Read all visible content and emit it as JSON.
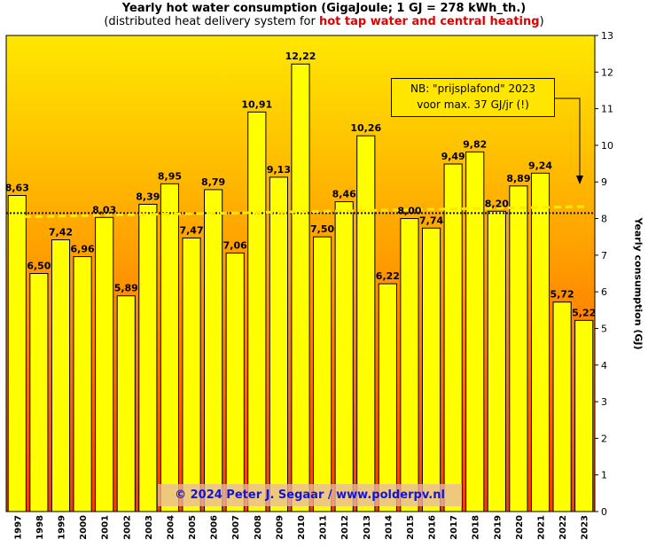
{
  "header": {
    "title": "Yearly hot water consumption  (GigaJoule;  1 GJ = 278 kWh_th.)",
    "subtitle_pre": "(distributed  heat delivery  system for ",
    "subtitle_highlight": "hot tap water and central heating",
    "subtitle_post": ")"
  },
  "note": {
    "line1": "NB:  \"prijsplafond\"  2023",
    "line2": "voor max.  37 GJ/jr  (!)"
  },
  "copyright": "© 2024  Peter  J. Segaar  /  www.polderpv.nl",
  "colors": {
    "bar_fill": "#ffff00",
    "bg_top": "#ffe800",
    "bg_mid": "#ffa000",
    "bg_bottom": "#ff3800",
    "avg_line": "#ffe800",
    "trend_line": "#111111",
    "copyright_text": "#1414d8",
    "highlight": "#e00000"
  },
  "chart_data": {
    "type": "bar",
    "title": "Yearly hot water consumption  (GigaJoule;  1 GJ = 278 kWh_th.)",
    "xlabel": "",
    "ylabel": "Yearly consumption (GJ)",
    "ylim": [
      0,
      13
    ],
    "yticks": [
      "0",
      "1",
      "2",
      "3",
      "4",
      "5",
      "6",
      "7",
      "8",
      "9",
      "10",
      "11",
      "12",
      "13"
    ],
    "categories": [
      "1997",
      "1998",
      "1999",
      "2000",
      "2001",
      "2002",
      "2003",
      "2004",
      "2005",
      "2006",
      "2007",
      "2008",
      "2009",
      "2010",
      "2011",
      "2012",
      "2013",
      "2014",
      "2015",
      "2016",
      "2017",
      "2018",
      "2019",
      "2020",
      "2021",
      "2022",
      "2023"
    ],
    "values": [
      8.63,
      6.5,
      7.42,
      6.96,
      8.03,
      5.89,
      8.39,
      8.95,
      7.47,
      8.79,
      7.06,
      10.91,
      9.13,
      12.22,
      7.5,
      8.46,
      10.26,
      6.22,
      8.0,
      7.74,
      9.49,
      9.82,
      8.2,
      8.89,
      9.24,
      5.72,
      5.22
    ],
    "value_labels": [
      "8,63",
      "6,50",
      "7,42",
      "6,96",
      "8,03",
      "5,89",
      "8,39",
      "8,95",
      "7,47",
      "8,79",
      "7,06",
      "10,91",
      "9,13",
      "12,22",
      "7,50",
      "8,46",
      "10,26",
      "6,22",
      "8,00",
      "7,74",
      "9,49",
      "9,82",
      "8,20",
      "8,89",
      "9,24",
      "5,72",
      "5,22"
    ],
    "average_line": 8.15,
    "trend_line": {
      "start": 8.05,
      "end": 8.33
    }
  }
}
